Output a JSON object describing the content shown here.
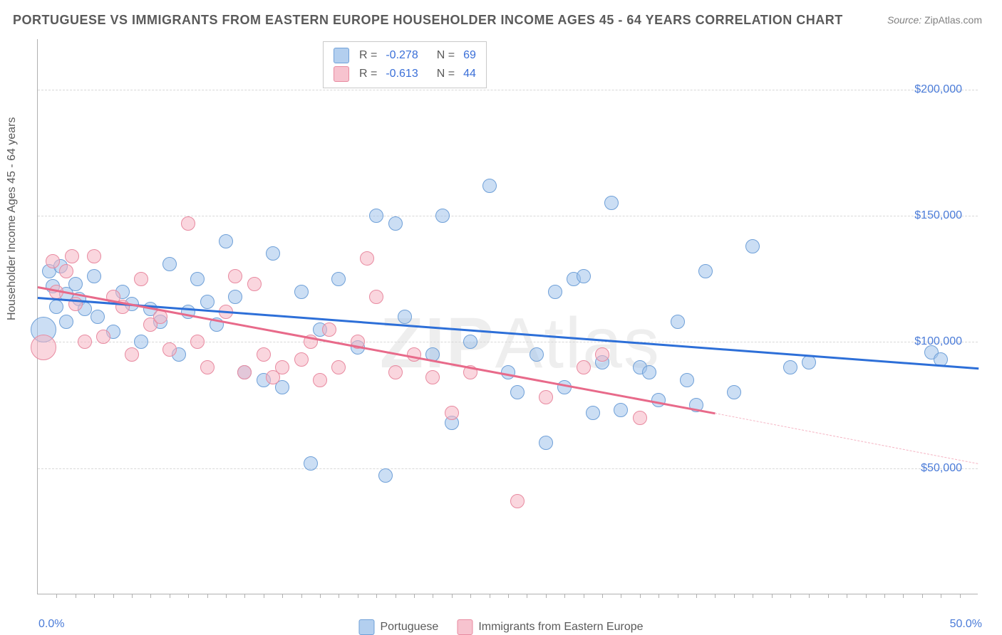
{
  "title": "PORTUGUESE VS IMMIGRANTS FROM EASTERN EUROPE HOUSEHOLDER INCOME AGES 45 - 64 YEARS CORRELATION CHART",
  "source_label": "Source:",
  "source_value": "ZipAtlas.com",
  "watermark_bold": "ZIP",
  "watermark_thin": "Atlas",
  "yaxis_label": "Householder Income Ages 45 - 64 years",
  "chart": {
    "type": "scatter",
    "xlim": [
      0,
      50
    ],
    "ylim": [
      0,
      220000
    ],
    "x_axis_min_label": "0.0%",
    "x_axis_max_label": "50.0%",
    "y_ticks": [
      50000,
      100000,
      150000,
      200000
    ],
    "y_tick_labels": [
      "$50,000",
      "$100,000",
      "$150,000",
      "$200,000"
    ],
    "x_minor_ticks": [
      1,
      2,
      3,
      4,
      5,
      6,
      7,
      8,
      9,
      10,
      11,
      12,
      13,
      14,
      15,
      16,
      17,
      18,
      19,
      20,
      21,
      22,
      23,
      24,
      25,
      26,
      27,
      28,
      29,
      30,
      31,
      32,
      33,
      34,
      35,
      36,
      37,
      38,
      39,
      40,
      41,
      42,
      43,
      44,
      45,
      46,
      47,
      48,
      49
    ],
    "background_color": "#ffffff",
    "grid_color": "#d8d8d8",
    "colors": {
      "blue_fill": "rgba(160,195,235,0.55)",
      "blue_stroke": "#6fa0d8",
      "blue_line": "#2d6fd8",
      "pink_fill": "rgba(245,180,195,0.55)",
      "pink_stroke": "#e88aa0",
      "pink_line": "#e86a8a",
      "pink_dash": "#f5b4c3",
      "axis_text": "#4a7bd8"
    },
    "marker_radius": 10,
    "large_marker_radius": 18,
    "line_width": 2.5,
    "series": [
      {
        "name": "Portuguese",
        "color_key": "blue",
        "R": "-0.278",
        "N": "69",
        "trend": {
          "x1": 0,
          "y1": 118000,
          "x2": 50,
          "y2": 90000
        },
        "points": [
          {
            "x": 0.3,
            "y": 105000,
            "r": 18
          },
          {
            "x": 0.6,
            "y": 128000
          },
          {
            "x": 0.8,
            "y": 122000
          },
          {
            "x": 1.0,
            "y": 114000
          },
          {
            "x": 1.2,
            "y": 130000
          },
          {
            "x": 1.5,
            "y": 119000
          },
          {
            "x": 1.5,
            "y": 108000
          },
          {
            "x": 2.0,
            "y": 123000
          },
          {
            "x": 2.2,
            "y": 117000
          },
          {
            "x": 2.5,
            "y": 113000
          },
          {
            "x": 3.0,
            "y": 126000
          },
          {
            "x": 3.2,
            "y": 110000
          },
          {
            "x": 4.0,
            "y": 104000
          },
          {
            "x": 4.5,
            "y": 120000
          },
          {
            "x": 5.0,
            "y": 115000
          },
          {
            "x": 5.5,
            "y": 100000
          },
          {
            "x": 6.0,
            "y": 113000
          },
          {
            "x": 6.5,
            "y": 108000
          },
          {
            "x": 7.0,
            "y": 131000
          },
          {
            "x": 7.5,
            "y": 95000
          },
          {
            "x": 8.0,
            "y": 112000
          },
          {
            "x": 8.5,
            "y": 125000
          },
          {
            "x": 9.0,
            "y": 116000
          },
          {
            "x": 9.5,
            "y": 107000
          },
          {
            "x": 10.0,
            "y": 140000
          },
          {
            "x": 10.5,
            "y": 118000
          },
          {
            "x": 11.0,
            "y": 88000
          },
          {
            "x": 12.0,
            "y": 85000
          },
          {
            "x": 12.5,
            "y": 135000
          },
          {
            "x": 13.0,
            "y": 82000
          },
          {
            "x": 14.0,
            "y": 120000
          },
          {
            "x": 14.5,
            "y": 52000
          },
          {
            "x": 15.0,
            "y": 105000
          },
          {
            "x": 16.0,
            "y": 125000
          },
          {
            "x": 17.0,
            "y": 98000
          },
          {
            "x": 18.0,
            "y": 150000
          },
          {
            "x": 18.5,
            "y": 47000
          },
          {
            "x": 19.0,
            "y": 147000
          },
          {
            "x": 19.5,
            "y": 110000
          },
          {
            "x": 21.0,
            "y": 95000
          },
          {
            "x": 21.5,
            "y": 150000
          },
          {
            "x": 22.0,
            "y": 68000
          },
          {
            "x": 23.0,
            "y": 100000
          },
          {
            "x": 24.0,
            "y": 162000
          },
          {
            "x": 25.0,
            "y": 88000
          },
          {
            "x": 25.5,
            "y": 80000
          },
          {
            "x": 26.5,
            "y": 95000
          },
          {
            "x": 27.0,
            "y": 60000
          },
          {
            "x": 28.0,
            "y": 82000
          },
          {
            "x": 28.5,
            "y": 125000
          },
          {
            "x": 29.0,
            "y": 126000
          },
          {
            "x": 29.5,
            "y": 72000
          },
          {
            "x": 30.0,
            "y": 92000
          },
          {
            "x": 30.5,
            "y": 155000
          },
          {
            "x": 31.0,
            "y": 73000
          },
          {
            "x": 32.0,
            "y": 90000
          },
          {
            "x": 32.5,
            "y": 88000
          },
          {
            "x": 33.0,
            "y": 77000
          },
          {
            "x": 34.0,
            "y": 108000
          },
          {
            "x": 34.5,
            "y": 85000
          },
          {
            "x": 35.0,
            "y": 75000
          },
          {
            "x": 35.5,
            "y": 128000
          },
          {
            "x": 37.0,
            "y": 80000
          },
          {
            "x": 38.0,
            "y": 138000
          },
          {
            "x": 40.0,
            "y": 90000
          },
          {
            "x": 41.0,
            "y": 92000
          },
          {
            "x": 47.5,
            "y": 96000
          },
          {
            "x": 48.0,
            "y": 93000
          },
          {
            "x": 27.5,
            "y": 120000
          }
        ]
      },
      {
        "name": "Immigrants from Eastern Europe",
        "color_key": "pink",
        "R": "-0.613",
        "N": "44",
        "trend": {
          "x1": 0,
          "y1": 122000,
          "x2": 36,
          "y2": 72000
        },
        "trend_dash": {
          "x1": 36,
          "y1": 72000,
          "x2": 50,
          "y2": 52000
        },
        "points": [
          {
            "x": 0.3,
            "y": 98000,
            "r": 18
          },
          {
            "x": 0.8,
            "y": 132000
          },
          {
            "x": 1.0,
            "y": 120000
          },
          {
            "x": 1.5,
            "y": 128000
          },
          {
            "x": 1.8,
            "y": 134000
          },
          {
            "x": 2.0,
            "y": 115000
          },
          {
            "x": 2.5,
            "y": 100000
          },
          {
            "x": 3.0,
            "y": 134000
          },
          {
            "x": 3.5,
            "y": 102000
          },
          {
            "x": 4.0,
            "y": 118000
          },
          {
            "x": 4.5,
            "y": 114000
          },
          {
            "x": 5.0,
            "y": 95000
          },
          {
            "x": 5.5,
            "y": 125000
          },
          {
            "x": 6.0,
            "y": 107000
          },
          {
            "x": 6.5,
            "y": 110000
          },
          {
            "x": 7.0,
            "y": 97000
          },
          {
            "x": 8.0,
            "y": 147000
          },
          {
            "x": 8.5,
            "y": 100000
          },
          {
            "x": 9.0,
            "y": 90000
          },
          {
            "x": 10.0,
            "y": 112000
          },
          {
            "x": 10.5,
            "y": 126000
          },
          {
            "x": 11.0,
            "y": 88000
          },
          {
            "x": 11.5,
            "y": 123000
          },
          {
            "x": 12.0,
            "y": 95000
          },
          {
            "x": 12.5,
            "y": 86000
          },
          {
            "x": 13.0,
            "y": 90000
          },
          {
            "x": 14.0,
            "y": 93000
          },
          {
            "x": 14.5,
            "y": 100000
          },
          {
            "x": 15.0,
            "y": 85000
          },
          {
            "x": 15.5,
            "y": 105000
          },
          {
            "x": 16.0,
            "y": 90000
          },
          {
            "x": 17.0,
            "y": 100000
          },
          {
            "x": 17.5,
            "y": 133000
          },
          {
            "x": 18.0,
            "y": 118000
          },
          {
            "x": 19.0,
            "y": 88000
          },
          {
            "x": 20.0,
            "y": 95000
          },
          {
            "x": 21.0,
            "y": 86000
          },
          {
            "x": 22.0,
            "y": 72000
          },
          {
            "x": 23.0,
            "y": 88000
          },
          {
            "x": 25.5,
            "y": 37000
          },
          {
            "x": 27.0,
            "y": 78000
          },
          {
            "x": 29.0,
            "y": 90000
          },
          {
            "x": 30.0,
            "y": 95000
          },
          {
            "x": 32.0,
            "y": 70000
          }
        ]
      }
    ]
  },
  "stats_labels": {
    "R": "R  =",
    "N": "N  ="
  },
  "legend": {
    "series1": "Portuguese",
    "series2": "Immigrants from Eastern Europe"
  }
}
